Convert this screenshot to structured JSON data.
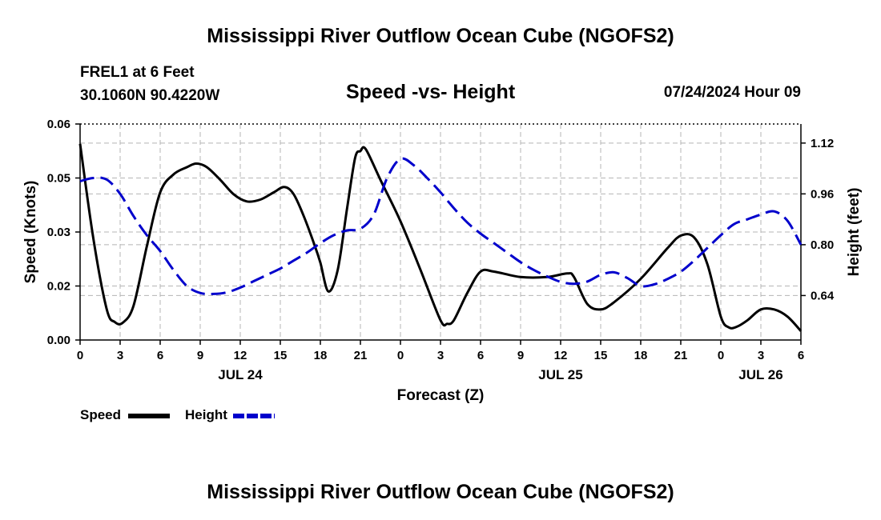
{
  "header": {
    "main_title": "Mississippi River Outflow Ocean Cube (NGOFS2)",
    "station_name": "FREL1 at 6 Feet",
    "coordinates": "30.1060N  90.4220W",
    "subtitle": "Speed -vs- Height",
    "datetime": "07/24/2024 Hour 09"
  },
  "footer": {
    "repeat_title": "Mississippi River Outflow Ocean Cube (NGOFS2)"
  },
  "legend": {
    "speed_label": "Speed",
    "height_label": "Height"
  },
  "colors": {
    "speed": "#000000",
    "height": "#0000cc",
    "grid": "#b4b4b4"
  },
  "chart_data": {
    "type": "line",
    "title": "Speed -vs- Height",
    "xlabel": "Forecast (Z)",
    "ylabel_left": "Speed (Knots)",
    "ylabel_right": "Height (feet)",
    "xlim": [
      0,
      54
    ],
    "ylim_left": [
      0.0,
      0.06
    ],
    "ylim_right": [
      0.5,
      1.18
    ],
    "x_ticks": [
      0,
      3,
      6,
      9,
      12,
      15,
      18,
      21,
      24,
      27,
      30,
      33,
      36,
      39,
      42,
      45,
      48,
      51,
      54
    ],
    "x_tick_labels": [
      "0",
      "3",
      "6",
      "9",
      "12",
      "15",
      "18",
      "21",
      "0",
      "3",
      "6",
      "9",
      "12",
      "15",
      "18",
      "21",
      "0",
      "3",
      "6"
    ],
    "date_labels": [
      {
        "x": 12,
        "label": "JUL 24"
      },
      {
        "x": 36,
        "label": "JUL 25"
      },
      {
        "x": 51,
        "label": "JUL 26"
      }
    ],
    "y_left_ticks": [
      0.0,
      0.015,
      0.03,
      0.045,
      0.06
    ],
    "y_left_tick_labels": [
      "0.00",
      "0.02",
      "0.03",
      "0.05",
      "0.06"
    ],
    "y_right_ticks": [
      0.64,
      0.8,
      0.96,
      1.12
    ],
    "y_right_tick_labels": [
      "0.64",
      "0.80",
      "0.96",
      "1.12"
    ],
    "grid": true,
    "legend_position": "bottom-left",
    "series": [
      {
        "name": "Speed",
        "axis": "left",
        "style": "solid",
        "x": [
          0,
          1,
          2,
          2.6,
          3.2,
          4,
          5,
          6,
          7,
          8,
          8.7,
          9.5,
          10.5,
          11.5,
          12.5,
          13.5,
          14.5,
          15.3,
          16,
          16.8,
          17.6,
          18,
          18.6,
          19.3,
          20,
          20.6,
          21,
          21.4,
          22.5,
          24,
          25.5,
          27,
          27.5,
          28,
          29,
          30,
          31,
          33,
          35,
          36.5,
          37,
          38,
          39,
          40,
          42,
          44,
          45,
          46,
          47,
          48,
          48.6,
          49.2,
          50,
          51,
          52,
          53,
          54
        ],
        "y": [
          0.0545,
          0.028,
          0.0085,
          0.005,
          0.0048,
          0.0095,
          0.026,
          0.041,
          0.046,
          0.048,
          0.049,
          0.048,
          0.0445,
          0.0405,
          0.0385,
          0.039,
          0.041,
          0.0425,
          0.0405,
          0.034,
          0.026,
          0.0215,
          0.0135,
          0.0195,
          0.0365,
          0.0505,
          0.0525,
          0.053,
          0.0445,
          0.033,
          0.0195,
          0.0055,
          0.0045,
          0.0055,
          0.013,
          0.019,
          0.019,
          0.0175,
          0.0175,
          0.0185,
          0.0175,
          0.01,
          0.0085,
          0.0105,
          0.017,
          0.0255,
          0.029,
          0.0285,
          0.021,
          0.0065,
          0.0035,
          0.0037,
          0.0055,
          0.0085,
          0.0085,
          0.0065,
          0.0025
        ]
      },
      {
        "name": "Height",
        "axis": "right",
        "style": "dashed",
        "x": [
          0,
          1,
          2,
          3,
          4,
          5,
          6,
          7,
          8,
          9,
          10,
          11,
          12,
          13,
          14,
          15,
          16,
          17,
          18,
          19,
          20,
          21,
          22,
          23,
          24,
          25,
          26,
          27,
          28,
          29,
          30,
          31,
          32,
          33,
          34,
          35,
          36,
          37,
          38,
          39,
          40,
          41,
          42,
          43,
          44,
          45,
          46,
          47,
          48,
          49,
          50,
          51,
          52,
          53,
          54
        ],
        "y": [
          1.0,
          1.01,
          1.005,
          0.96,
          0.89,
          0.83,
          0.78,
          0.72,
          0.67,
          0.648,
          0.645,
          0.65,
          0.665,
          0.685,
          0.705,
          0.725,
          0.75,
          0.775,
          0.805,
          0.83,
          0.845,
          0.85,
          0.895,
          1.01,
          1.07,
          1.05,
          1.01,
          0.965,
          0.915,
          0.87,
          0.835,
          0.805,
          0.775,
          0.745,
          0.72,
          0.7,
          0.683,
          0.677,
          0.684,
          0.705,
          0.713,
          0.695,
          0.67,
          0.675,
          0.692,
          0.715,
          0.75,
          0.79,
          0.83,
          0.865,
          0.88,
          0.895,
          0.905,
          0.875,
          0.8
        ]
      }
    ]
  }
}
